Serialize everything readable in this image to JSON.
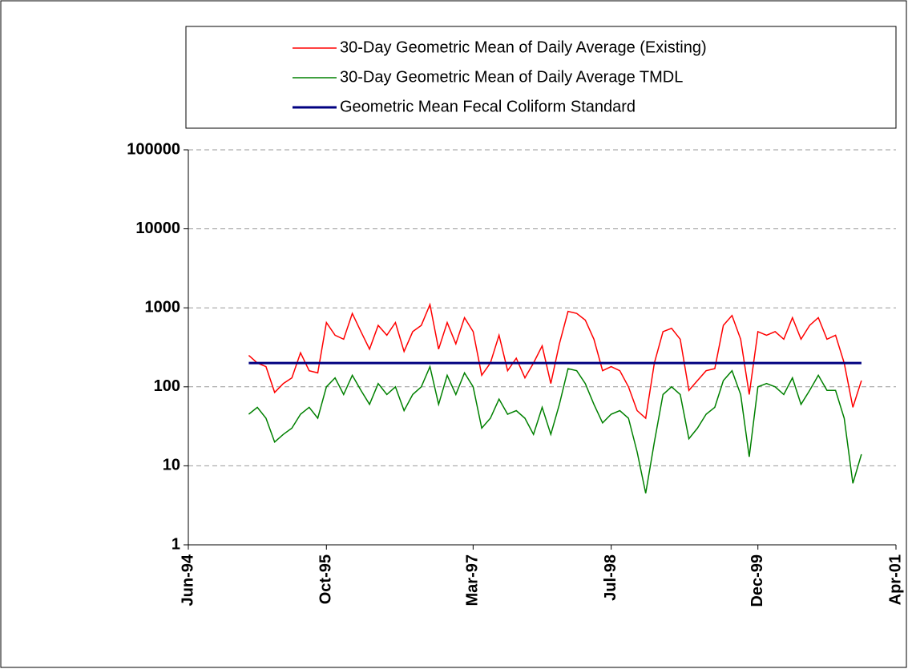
{
  "chart_data": {
    "type": "line",
    "x": [
      "1995-01",
      "1995-02",
      "1995-03",
      "1995-04",
      "1995-05",
      "1995-06",
      "1995-07",
      "1995-08",
      "1995-09",
      "1995-10",
      "1995-11",
      "1995-12",
      "1996-01",
      "1996-02",
      "1996-03",
      "1996-04",
      "1996-05",
      "1996-06",
      "1996-07",
      "1996-08",
      "1996-09",
      "1996-10",
      "1996-11",
      "1996-12",
      "1997-01",
      "1997-02",
      "1997-03",
      "1997-04",
      "1997-05",
      "1997-06",
      "1997-07",
      "1997-08",
      "1997-09",
      "1997-10",
      "1997-11",
      "1997-12",
      "1998-01",
      "1998-02",
      "1998-03",
      "1998-04",
      "1998-05",
      "1998-06",
      "1998-07",
      "1998-08",
      "1998-09",
      "1998-10",
      "1998-11",
      "1998-12",
      "1999-01",
      "1999-02",
      "1999-03",
      "1999-04",
      "1999-05",
      "1999-06",
      "1999-07",
      "1999-08",
      "1999-09",
      "1999-10",
      "1999-11",
      "1999-12",
      "2000-01",
      "2000-02",
      "2000-03",
      "2000-04",
      "2000-05",
      "2000-06",
      "2000-07",
      "2000-08",
      "2000-09",
      "2000-10",
      "2000-11",
      "2000-12"
    ],
    "series": [
      {
        "name": "30-Day Geometric Mean of Daily Average (Existing)",
        "color": "#ff0000",
        "values": [
          250,
          200,
          180,
          85,
          110,
          130,
          270,
          160,
          150,
          650,
          450,
          400,
          850,
          500,
          300,
          600,
          450,
          650,
          280,
          500,
          600,
          1100,
          300,
          650,
          350,
          750,
          500,
          140,
          200,
          450,
          160,
          230,
          130,
          200,
          330,
          110,
          350,
          900,
          850,
          700,
          400,
          160,
          180,
          160,
          100,
          50,
          40,
          200,
          500,
          550,
          400,
          90,
          120,
          160,
          170,
          600,
          800,
          400,
          80,
          500,
          450,
          500,
          400,
          750,
          400,
          600,
          750,
          400,
          450,
          200,
          55,
          120
        ]
      },
      {
        "name": "30-Day Geometric Mean of Daily Average TMDL",
        "color": "#008000",
        "values": [
          45,
          55,
          40,
          20,
          25,
          30,
          45,
          55,
          40,
          100,
          130,
          80,
          140,
          90,
          60,
          110,
          80,
          100,
          50,
          80,
          100,
          180,
          60,
          140,
          80,
          150,
          100,
          30,
          40,
          70,
          45,
          50,
          40,
          25,
          55,
          25,
          60,
          170,
          160,
          110,
          60,
          35,
          45,
          50,
          40,
          15,
          4.5,
          20,
          80,
          100,
          80,
          22,
          30,
          45,
          55,
          120,
          160,
          80,
          13,
          100,
          110,
          100,
          80,
          130,
          60,
          90,
          140,
          90,
          90,
          40,
          6,
          14
        ]
      },
      {
        "name": "Geometric Mean Fecal Coliform Standard",
        "color": "#000080",
        "values": [
          200,
          200,
          200,
          200,
          200,
          200,
          200,
          200,
          200,
          200,
          200,
          200,
          200,
          200,
          200,
          200,
          200,
          200,
          200,
          200,
          200,
          200,
          200,
          200,
          200,
          200,
          200,
          200,
          200,
          200,
          200,
          200,
          200,
          200,
          200,
          200,
          200,
          200,
          200,
          200,
          200,
          200,
          200,
          200,
          200,
          200,
          200,
          200,
          200,
          200,
          200,
          200,
          200,
          200,
          200,
          200,
          200,
          200,
          200,
          200,
          200,
          200,
          200,
          200,
          200,
          200,
          200,
          200,
          200,
          200,
          200,
          200
        ]
      }
    ],
    "xlim": [
      "1994-06",
      "2001-04"
    ],
    "xticks": [
      {
        "value": "1994-06",
        "label": "Jun-94"
      },
      {
        "value": "1995-10",
        "label": "Oct-95"
      },
      {
        "value": "1997-03",
        "label": "Mar-97"
      },
      {
        "value": "1998-07",
        "label": "Jul-98"
      },
      {
        "value": "1999-12",
        "label": "Dec-99"
      },
      {
        "value": "2001-04",
        "label": "Apr-01"
      }
    ],
    "ylim": [
      1,
      100000
    ],
    "yticks": [
      1,
      10,
      100,
      1000,
      10000,
      100000
    ],
    "log_y": true,
    "grid": true,
    "legend_position": "top"
  }
}
